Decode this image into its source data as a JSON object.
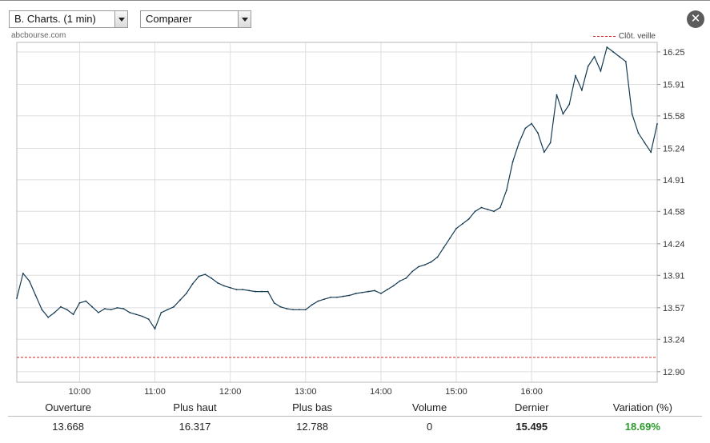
{
  "toolbar": {
    "chart_select": "B. Charts. (1 min)",
    "compare_select": "Comparer",
    "close_label": "✕"
  },
  "source": "abcbourse.com",
  "legend": {
    "previous_close": "Clôt. veille"
  },
  "stats": {
    "headers": [
      "Ouverture",
      "Plus haut",
      "Plus bas",
      "Volume",
      "Dernier",
      "Variation (%)"
    ],
    "values": [
      "13.668",
      "16.317",
      "12.788",
      "0",
      "15.495",
      "18.69%"
    ]
  },
  "colors": {
    "price_line": "#143a52",
    "previous_close": "#d42020",
    "variation_up": "#2b9a2b",
    "grid": "#dedede"
  },
  "chart_data": {
    "type": "line",
    "title": "",
    "xlabel": "",
    "ylabel": "",
    "x_ticks": [
      "10:00",
      "11:00",
      "12:00",
      "13:00",
      "14:00",
      "15:00",
      "16:00"
    ],
    "y_ticks": [
      "12.90",
      "13.24",
      "13.57",
      "13.91",
      "14.24",
      "14.58",
      "14.91",
      "15.24",
      "15.58",
      "15.91",
      "16.25"
    ],
    "ylim": [
      12.79,
      16.35
    ],
    "xlim": [
      "09:10",
      "17:40"
    ],
    "previous_close": 13.05,
    "grid": true,
    "legend_position": "top-right",
    "series": [
      {
        "x": [
          "09:10",
          "09:15",
          "09:20",
          "09:25",
          "09:30",
          "09:35",
          "09:40",
          "09:45",
          "09:50",
          "09:55",
          "10:00",
          "10:05",
          "10:10",
          "10:15",
          "10:20",
          "10:25",
          "10:30",
          "10:35",
          "10:40",
          "10:45",
          "10:50",
          "10:55",
          "11:00",
          "11:05",
          "11:10",
          "11:15",
          "11:20",
          "11:25",
          "11:30",
          "11:35",
          "11:40",
          "11:45",
          "11:50",
          "11:55",
          "12:00",
          "12:05",
          "12:10",
          "12:15",
          "12:20",
          "12:25",
          "12:30",
          "12:35",
          "12:40",
          "12:45",
          "12:50",
          "12:55",
          "13:00",
          "13:05",
          "13:10",
          "13:15",
          "13:20",
          "13:25",
          "13:30",
          "13:35",
          "13:40",
          "13:45",
          "13:50",
          "13:55",
          "14:00",
          "14:05",
          "14:10",
          "14:15",
          "14:20",
          "14:25",
          "14:30",
          "14:35",
          "14:40",
          "14:45",
          "14:50",
          "14:55",
          "15:00",
          "15:05",
          "15:10",
          "15:15",
          "15:20",
          "15:25",
          "15:30",
          "15:35",
          "15:40",
          "15:45",
          "15:50",
          "15:55",
          "16:00",
          "16:05",
          "16:10",
          "16:15",
          "16:20",
          "16:25",
          "16:30",
          "16:35",
          "16:40",
          "16:45",
          "16:50",
          "16:55",
          "17:00",
          "17:05",
          "17:10",
          "17:15",
          "17:20",
          "17:25",
          "17:30",
          "17:35",
          "17:40"
        ],
        "values": [
          13.67,
          13.93,
          13.85,
          13.7,
          13.55,
          13.47,
          13.52,
          13.58,
          13.55,
          13.5,
          13.62,
          13.64,
          13.58,
          13.52,
          13.56,
          13.55,
          13.57,
          13.56,
          13.52,
          13.5,
          13.48,
          13.45,
          13.35,
          13.52,
          13.55,
          13.58,
          13.65,
          13.72,
          13.82,
          13.9,
          13.92,
          13.88,
          13.83,
          13.8,
          13.78,
          13.76,
          13.76,
          13.75,
          13.74,
          13.74,
          13.74,
          13.62,
          13.58,
          13.56,
          13.55,
          13.55,
          13.55,
          13.6,
          13.64,
          13.66,
          13.68,
          13.68,
          13.69,
          13.7,
          13.72,
          13.73,
          13.74,
          13.75,
          13.72,
          13.76,
          13.8,
          13.85,
          13.88,
          13.95,
          14.0,
          14.02,
          14.05,
          14.1,
          14.2,
          14.3,
          14.4,
          14.45,
          14.5,
          14.58,
          14.62,
          14.6,
          14.58,
          14.62,
          14.8,
          15.1,
          15.3,
          15.45,
          15.5,
          15.4,
          15.2,
          15.3,
          15.8,
          15.6,
          15.7,
          16.0,
          15.85,
          16.1,
          16.2,
          16.05,
          16.3,
          16.25,
          16.2,
          16.15,
          15.6,
          15.4,
          15.3,
          15.2,
          15.495
        ]
      }
    ]
  }
}
